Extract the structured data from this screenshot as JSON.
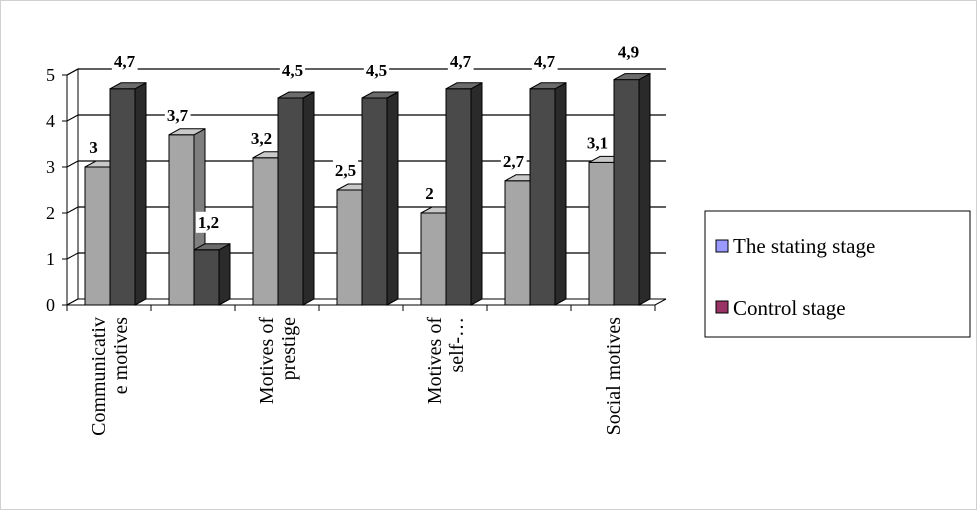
{
  "chart_data": {
    "type": "bar",
    "categories": [
      [
        "Communicativ",
        "e motives"
      ],
      [
        "",
        ""
      ],
      [
        "Motives of",
        "prestige"
      ],
      [
        "",
        ""
      ],
      [
        "Motives of",
        "self-…"
      ],
      [
        "",
        ""
      ],
      [
        "Social motives"
      ]
    ],
    "series": [
      {
        "name": "The stating stage",
        "values": [
          3,
          3.7,
          3.2,
          2.5,
          2,
          2.7,
          3.1
        ],
        "labels": [
          "3",
          "3,7",
          "3,2",
          "2,5",
          "2",
          "2,7",
          "3,1"
        ]
      },
      {
        "name": "Control stage",
        "values": [
          4.7,
          1.2,
          4.5,
          4.5,
          4.7,
          4.7,
          4.9
        ],
        "labels": [
          "4,7",
          "1,2",
          "4,5",
          "4,5",
          "4,7",
          "4,7",
          "4,9"
        ]
      }
    ],
    "yticks": [
      "0",
      "1",
      "2",
      "3",
      "4",
      "5"
    ],
    "ylim": [
      0,
      5
    ],
    "grid": true,
    "legend_position": "right",
    "colors": {
      "stating_front": "#a6a6a6",
      "stating_side": "#7f7f7f",
      "stating_top": "#c9c9c9",
      "control_front": "#4a4a4a",
      "control_side": "#2a2a2a",
      "control_top": "#6b6b6b",
      "legend_stating": "#9999ff",
      "legend_control": "#993366"
    }
  }
}
